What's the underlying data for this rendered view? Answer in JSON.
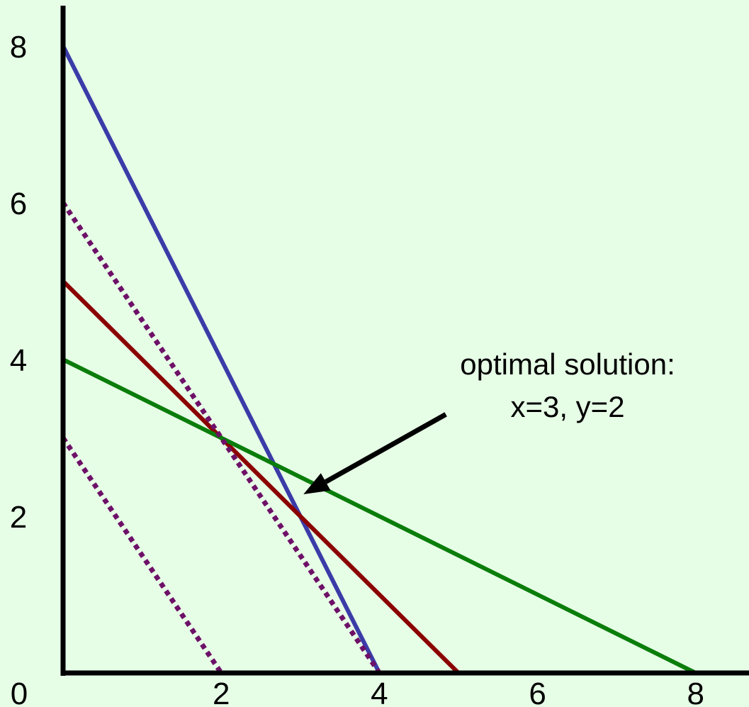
{
  "chart_data": {
    "type": "line",
    "title": "",
    "xlabel": "",
    "ylabel": "",
    "xlim": [
      0,
      8.6
    ],
    "ylim": [
      0,
      8.4
    ],
    "grid": false,
    "legend": "none",
    "background_color": "#e6fde6",
    "x_ticks": [
      {
        "value": 0,
        "label": "0"
      },
      {
        "value": 2,
        "label": "2"
      },
      {
        "value": 4,
        "label": "4"
      },
      {
        "value": 6,
        "label": "6"
      },
      {
        "value": 8,
        "label": "8"
      }
    ],
    "y_ticks": [
      {
        "value": 2,
        "label": "2"
      },
      {
        "value": 4,
        "label": "4"
      },
      {
        "value": 6,
        "label": "6"
      },
      {
        "value": 8,
        "label": "8"
      }
    ],
    "series": [
      {
        "id": "blue-constraint",
        "color": "#3b3ba8",
        "style": "solid",
        "x": [
          0,
          4
        ],
        "y": [
          8,
          0
        ]
      },
      {
        "id": "red-constraint",
        "color": "#8b0000",
        "style": "solid",
        "x": [
          0,
          5
        ],
        "y": [
          5,
          0
        ]
      },
      {
        "id": "green-constraint",
        "color": "#0a7d0a",
        "style": "solid",
        "x": [
          0,
          8
        ],
        "y": [
          4,
          0
        ]
      },
      {
        "id": "objective-line-1",
        "color": "#6e1068",
        "style": "dotted",
        "x": [
          0,
          2
        ],
        "y": [
          3,
          0
        ]
      },
      {
        "id": "objective-line-2",
        "color": "#6e1068",
        "style": "dotted",
        "x": [
          0,
          4
        ],
        "y": [
          6,
          0
        ]
      }
    ],
    "annotations": [
      {
        "lines": [
          "optimal solution:",
          "x=3, y=2"
        ],
        "point": {
          "x": 3,
          "y": 2
        },
        "text_anchor": {
          "x": 6.3,
          "y": 4.2
        },
        "arrow_tail": {
          "x": 4.84,
          "y": 3.3
        },
        "arrow_head": {
          "x": 3.04,
          "y": 2.28
        }
      }
    ]
  }
}
